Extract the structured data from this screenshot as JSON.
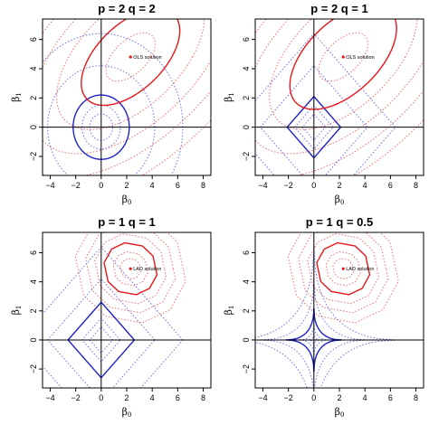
{
  "colors": {
    "red": "#e8161a",
    "blue": "#1e22c8",
    "red_dotted": "#f07070",
    "blue_dotted": "#7070e8"
  },
  "chart_data": [
    {
      "type": "line",
      "title": "p = 2 q = 2",
      "xlabel": "β0",
      "ylabel": "β1",
      "xlim": [
        -4.6,
        8.6
      ],
      "ylim": [
        -3.3,
        7.4
      ],
      "xticks": [
        -4,
        -2,
        0,
        2,
        4,
        6,
        8
      ],
      "yticks": [
        -2,
        0,
        2,
        4,
        6
      ],
      "grid": false,
      "point": {
        "label": "OLS solution",
        "x": 2.3,
        "y": 4.8
      },
      "constraint": {
        "shape": "L2 ball (circle)",
        "radius": 2.2,
        "color": "blue"
      },
      "loss_contours": {
        "shape": "ellipse",
        "tangent_level": 2.4,
        "color": "red"
      }
    },
    {
      "type": "line",
      "title": "p = 2 q = 1",
      "xlabel": "β0",
      "ylabel": "β1",
      "xlim": [
        -4.6,
        8.6
      ],
      "ylim": [
        -3.3,
        7.4
      ],
      "xticks": [
        -4,
        -2,
        0,
        2,
        4,
        6,
        8
      ],
      "yticks": [
        -2,
        0,
        2,
        4,
        6
      ],
      "grid": false,
      "point": {
        "label": "OLS solution",
        "x": 2.3,
        "y": 4.8
      },
      "constraint": {
        "shape": "L1 ball (diamond)",
        "radius": 2.1,
        "color": "blue"
      },
      "loss_contours": {
        "shape": "ellipse",
        "tangent_level": 2.6,
        "color": "red"
      }
    },
    {
      "type": "line",
      "title": "p = 1 q = 1",
      "xlabel": "β0",
      "ylabel": "β1",
      "xlim": [
        -4.6,
        8.6
      ],
      "ylim": [
        -3.3,
        7.4
      ],
      "xticks": [
        -4,
        -2,
        0,
        2,
        4,
        6,
        8
      ],
      "yticks": [
        -2,
        0,
        2,
        4,
        6
      ],
      "grid": false,
      "point": {
        "label": "LAD solution",
        "x": 2.3,
        "y": 4.9
      },
      "constraint": {
        "shape": "L1 ball (diamond)",
        "radius": 2.6,
        "color": "blue"
      },
      "loss_contours": {
        "shape": "polygonal (L1 loss)",
        "tangent_level": 2.3,
        "color": "red"
      }
    },
    {
      "type": "line",
      "title": "p = 1 q = 0.5",
      "xlabel": "β0",
      "ylabel": "β1",
      "xlim": [
        -4.6,
        8.6
      ],
      "ylim": [
        -3.3,
        7.4
      ],
      "xticks": [
        -4,
        -2,
        0,
        2,
        4,
        6,
        8
      ],
      "yticks": [
        -2,
        0,
        2,
        4,
        6
      ],
      "grid": false,
      "point": {
        "label": "LAD solution",
        "x": 2.3,
        "y": 4.9
      },
      "constraint": {
        "shape": "L0.5 ball (astroid)",
        "radius": 2.2,
        "color": "blue"
      },
      "loss_contours": {
        "shape": "polygonal (L1 loss)",
        "tangent_level": 2.3,
        "color": "red"
      }
    }
  ]
}
